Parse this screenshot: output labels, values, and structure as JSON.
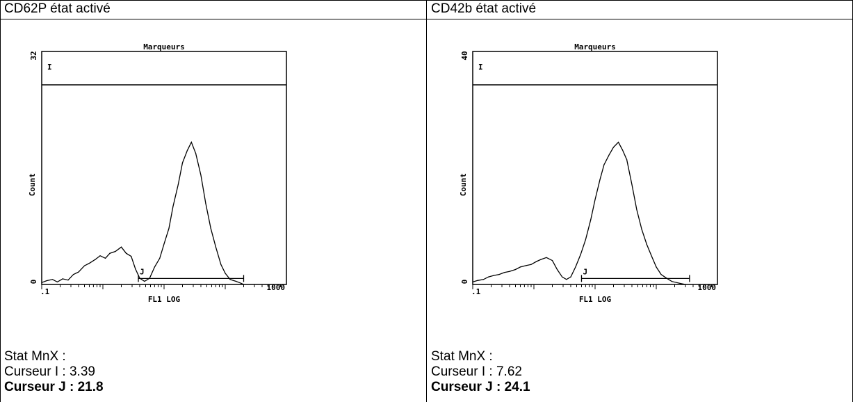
{
  "panels": [
    {
      "header": "CD62P état activé",
      "stats": {
        "title": "Stat MnX :",
        "cursor_i": "Curseur I : 3.39",
        "cursor_j": "Curseur J : 21.8"
      },
      "chart_data": {
        "type": "line",
        "title": "Marqueurs",
        "xlabel": "FL1 LOG",
        "ylabel": "Count",
        "x_scale": "log",
        "xlim": [
          0.1,
          1000
        ],
        "ylim": [
          0,
          32
        ],
        "x_tick_labels": [
          ".1",
          "1000"
        ],
        "y_tick_labels": [
          "0",
          "32"
        ],
        "marker_i_label": "I",
        "marker_j_label": "J",
        "marker_j_range": [
          3.8,
          200
        ],
        "series": [
          {
            "x": [
              0.1,
              0.12,
              0.15,
              0.18,
              0.22,
              0.27,
              0.33,
              0.4,
              0.5,
              0.6,
              0.75,
              0.9,
              1.1,
              1.3,
              1.6,
              2.0,
              2.4,
              2.9,
              3.4,
              4.0,
              4.8,
              5.8,
              7.0,
              8.5,
              10,
              12,
              14,
              17,
              20,
              24,
              28,
              33,
              40,
              48,
              58,
              70,
              85,
              100,
              120,
              150,
              180,
              200
            ],
            "y": [
              0.3,
              0.6,
              0.8,
              0.4,
              0.9,
              0.7,
              1.6,
              2.0,
              3.0,
              3.4,
              4.0,
              4.6,
              4.2,
              5.0,
              5.3,
              6.0,
              5.0,
              4.5,
              2.5,
              1.0,
              0.5,
              1.0,
              2.8,
              4.2,
              6.5,
              9.0,
              12.5,
              16.0,
              19.5,
              21.5,
              22.8,
              21.0,
              17.5,
              13.0,
              9.0,
              6.0,
              3.2,
              1.8,
              0.8,
              0.5,
              0.2,
              0.0
            ]
          }
        ]
      }
    },
    {
      "header": "CD42b état activé",
      "stats": {
        "title": "Stat MnX :",
        "cursor_i": "Curseur I : 7.62",
        "cursor_j": "Curseur J : 24.1"
      },
      "chart_data": {
        "type": "line",
        "title": "Marqueurs",
        "xlabel": "FL1 LOG",
        "ylabel": "Count",
        "x_scale": "log",
        "xlim": [
          0.1,
          1000
        ],
        "ylim": [
          0,
          40
        ],
        "x_tick_labels": [
          ".1",
          "1000"
        ],
        "y_tick_labels": [
          "0",
          "40"
        ],
        "marker_i_label": "I",
        "marker_j_label": "J",
        "marker_j_range": [
          6,
          350
        ],
        "series": [
          {
            "x": [
              0.1,
              0.12,
              0.15,
              0.18,
              0.22,
              0.27,
              0.33,
              0.4,
              0.5,
              0.6,
              0.75,
              0.9,
              1.1,
              1.3,
              1.6,
              2.0,
              2.4,
              2.9,
              3.4,
              4.0,
              4.8,
              5.8,
              7.0,
              8.5,
              10,
              12,
              14,
              17,
              20,
              24,
              28,
              33,
              40,
              48,
              58,
              70,
              85,
              100,
              120,
              150,
              180,
              250,
              300
            ],
            "y": [
              0.5,
              0.8,
              1.0,
              1.5,
              1.8,
              2.0,
              2.4,
              2.6,
              3.0,
              3.5,
              3.8,
              4.0,
              4.6,
              5.0,
              5.4,
              4.8,
              3.0,
              1.5,
              1.0,
              1.5,
              3.5,
              6.0,
              9.0,
              13.0,
              17.0,
              21.0,
              24.0,
              26.0,
              27.5,
              28.5,
              27.0,
              25.0,
              20.0,
              15.0,
              11.0,
              8.0,
              5.5,
              3.5,
              2.0,
              1.2,
              0.6,
              0.2,
              0.0
            ]
          }
        ]
      }
    }
  ]
}
